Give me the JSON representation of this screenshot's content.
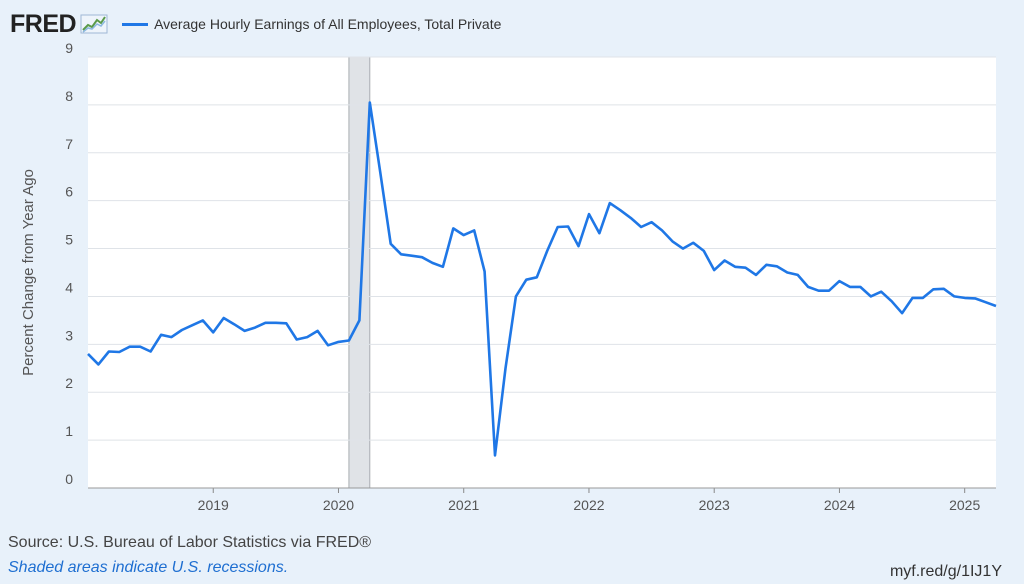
{
  "header": {
    "logo_text": "FRED",
    "logo_icon": "line-chart-icon"
  },
  "footer": {
    "source": "Source: U.S. Bureau of Labor Statistics via FRED®",
    "recession_note": "Shaded areas indicate U.S. recessions.",
    "short_link": "myf.red/g/1IJ1Y"
  },
  "colors": {
    "series": "#1f77e6",
    "background": "#e8f1fa",
    "plot_background": "#ffffff",
    "recession_shade": "#e0e3e7"
  },
  "chart_data": {
    "type": "line",
    "title": "",
    "ylabel": "Percent Change from Year Ago",
    "xlabel": "",
    "ylim": [
      0,
      9
    ],
    "xlim": [
      "2018-01",
      "2025-04"
    ],
    "yticks": [
      "0",
      "1",
      "2",
      "3",
      "4",
      "5",
      "6",
      "7",
      "8",
      "9"
    ],
    "xticks": [
      {
        "label": "2019",
        "date": "2019-01"
      },
      {
        "label": "2020",
        "date": "2020-01"
      },
      {
        "label": "2021",
        "date": "2021-01"
      },
      {
        "label": "2022",
        "date": "2022-01"
      },
      {
        "label": "2023",
        "date": "2023-01"
      },
      {
        "label": "2024",
        "date": "2024-01"
      },
      {
        "label": "2025",
        "date": "2025-01"
      }
    ],
    "grid": "horizontal",
    "legend_position": "top-left",
    "recessions": [
      {
        "start": "2020-02",
        "end": "2020-04"
      }
    ],
    "series": [
      {
        "name": "Average Hourly Earnings of All Employees, Total Private",
        "x": [
          "2018-01",
          "2018-02",
          "2018-03",
          "2018-04",
          "2018-05",
          "2018-06",
          "2018-07",
          "2018-08",
          "2018-09",
          "2018-10",
          "2018-11",
          "2018-12",
          "2019-01",
          "2019-02",
          "2019-03",
          "2019-04",
          "2019-05",
          "2019-06",
          "2019-07",
          "2019-08",
          "2019-09",
          "2019-10",
          "2019-11",
          "2019-12",
          "2020-01",
          "2020-02",
          "2020-03",
          "2020-04",
          "2020-05",
          "2020-06",
          "2020-07",
          "2020-08",
          "2020-09",
          "2020-10",
          "2020-11",
          "2020-12",
          "2021-01",
          "2021-02",
          "2021-03",
          "2021-04",
          "2021-05",
          "2021-06",
          "2021-07",
          "2021-08",
          "2021-09",
          "2021-10",
          "2021-11",
          "2021-12",
          "2022-01",
          "2022-02",
          "2022-03",
          "2022-04",
          "2022-05",
          "2022-06",
          "2022-07",
          "2022-08",
          "2022-09",
          "2022-10",
          "2022-11",
          "2022-12",
          "2023-01",
          "2023-02",
          "2023-03",
          "2023-04",
          "2023-05",
          "2023-06",
          "2023-07",
          "2023-08",
          "2023-09",
          "2023-10",
          "2023-11",
          "2023-12",
          "2024-01",
          "2024-02",
          "2024-03",
          "2024-04",
          "2024-05",
          "2024-06",
          "2024-07",
          "2024-08",
          "2024-09",
          "2024-10",
          "2024-11",
          "2024-12",
          "2025-01",
          "2025-02",
          "2025-03",
          "2025-04"
        ],
        "values": [
          2.8,
          2.58,
          2.85,
          2.84,
          2.95,
          2.95,
          2.85,
          3.2,
          3.15,
          3.3,
          3.4,
          3.5,
          3.25,
          3.55,
          3.42,
          3.28,
          3.35,
          3.45,
          3.45,
          3.44,
          3.1,
          3.15,
          3.28,
          2.98,
          3.05,
          3.08,
          3.5,
          8.05,
          6.6,
          5.1,
          4.88,
          4.85,
          4.82,
          4.7,
          4.62,
          5.42,
          5.28,
          5.38,
          4.52,
          0.68,
          2.5,
          4.0,
          4.35,
          4.4,
          4.95,
          5.45,
          5.46,
          5.05,
          5.72,
          5.32,
          5.95,
          5.8,
          5.64,
          5.45,
          5.55,
          5.38,
          5.15,
          5.0,
          5.12,
          4.95,
          4.55,
          4.75,
          4.62,
          4.6,
          4.45,
          4.66,
          4.63,
          4.5,
          4.45,
          4.2,
          4.12,
          4.12,
          4.32,
          4.2,
          4.2,
          4.0,
          4.1,
          3.9,
          3.65,
          3.97,
          3.97,
          4.15,
          4.16,
          4.0,
          3.97,
          3.96,
          3.88,
          3.8
        ]
      }
    ]
  }
}
